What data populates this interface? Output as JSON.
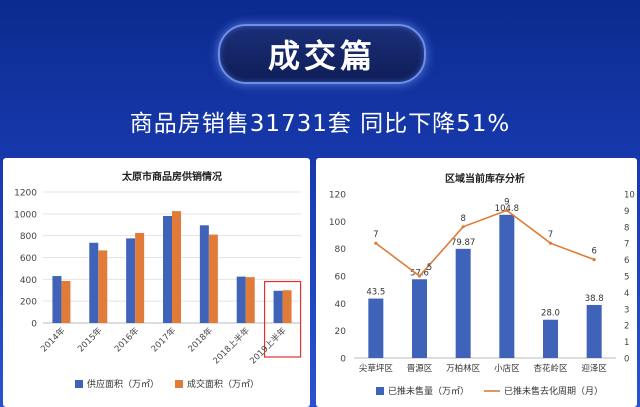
{
  "banner": {
    "title": "成交篇"
  },
  "headline": "商品房销售31731套 同比下降51%",
  "chart_data": [
    {
      "type": "bar",
      "title": "太原市商品房供销情况",
      "categories": [
        "2014年",
        "2015年",
        "2016年",
        "2017年",
        "2018年",
        "2018上半年",
        "2019上半年"
      ],
      "series": [
        {
          "name": "供应面积（万㎡）",
          "color": "#3e63b8",
          "values": [
            430,
            735,
            775,
            980,
            895,
            425,
            295
          ]
        },
        {
          "name": "成交面积（万㎡）",
          "color": "#e07b39",
          "values": [
            385,
            665,
            825,
            1025,
            810,
            420,
            300
          ]
        }
      ],
      "yticks": [
        "0",
        "200",
        "400",
        "600",
        "800",
        "1000",
        "1200"
      ],
      "ylim": [
        0,
        1200
      ],
      "grid": true,
      "legend": "bottom",
      "highlight_category": "2019上半年"
    },
    {
      "type": "bar",
      "title": "区域当前库存分析",
      "categories": [
        "尖草坪区",
        "晋源区",
        "万柏林区",
        "小店区",
        "杏花岭区",
        "迎泽区"
      ],
      "series": [
        {
          "name": "已推未售量（万㎡）",
          "type": "bar",
          "color": "#3e63b8",
          "axis": "left",
          "values": [
            43.5,
            57.6,
            79.87,
            104.8,
            28.0,
            38.8
          ]
        },
        {
          "name": "已推未售去化周期（月）",
          "type": "line",
          "color": "#e07b39",
          "axis": "right",
          "values": [
            7,
            5,
            8,
            9,
            7,
            6
          ]
        }
      ],
      "bar_labels": [
        "43.5",
        "57.6",
        "79.87",
        "104.8",
        "28.0",
        "38.8"
      ],
      "line_labels": [
        "7",
        "5",
        "8",
        "9",
        "7",
        "6"
      ],
      "yticks_left": [
        "0",
        "20",
        "40",
        "60",
        "80",
        "100",
        "120"
      ],
      "yticks_right": [
        "0",
        "1",
        "2",
        "3",
        "4",
        "5",
        "6",
        "7",
        "8",
        "9",
        "10"
      ],
      "ylim_left": [
        0,
        120
      ],
      "ylim_right": [
        0,
        10
      ],
      "grid": false,
      "legend": "bottom"
    }
  ]
}
